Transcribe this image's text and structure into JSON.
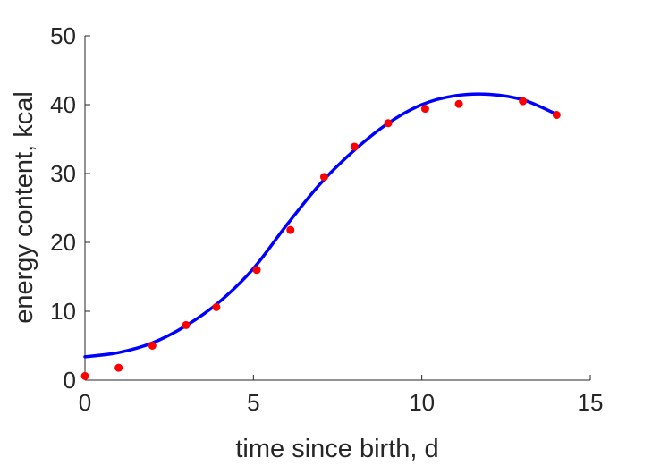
{
  "chart_data": {
    "type": "scatter",
    "title": "",
    "xlabel": "time since birth, d",
    "ylabel": "energy content, kcal",
    "xlim": [
      0,
      15
    ],
    "ylim": [
      0,
      50
    ],
    "xticks": [
      "0",
      "5",
      "10",
      "15"
    ],
    "yticks": [
      "0",
      "10",
      "20",
      "30",
      "40",
      "50"
    ],
    "grid": false,
    "legend": "none",
    "series": [
      {
        "kind": "points",
        "color": "#ff0000",
        "x": [
          0,
          1,
          2,
          3,
          3.9,
          5.1,
          6.1,
          7.1,
          8,
          9,
          10.1,
          11.1,
          13,
          14
        ],
        "y": [
          0.6,
          1.8,
          5.0,
          8.0,
          10.6,
          16.0,
          21.8,
          29.5,
          33.9,
          37.3,
          39.4,
          40.1,
          40.5,
          38.5
        ]
      },
      {
        "kind": "line",
        "color": "#0000ff",
        "x": [
          0,
          1,
          2,
          3,
          4,
          5,
          6,
          7,
          8,
          9,
          10,
          11,
          12,
          13,
          14
        ],
        "y": [
          3.4,
          4.0,
          5.4,
          7.9,
          11.4,
          16.2,
          22.6,
          28.6,
          33.4,
          37.3,
          40.0,
          41.3,
          41.5,
          40.7,
          38.6
        ]
      }
    ]
  }
}
